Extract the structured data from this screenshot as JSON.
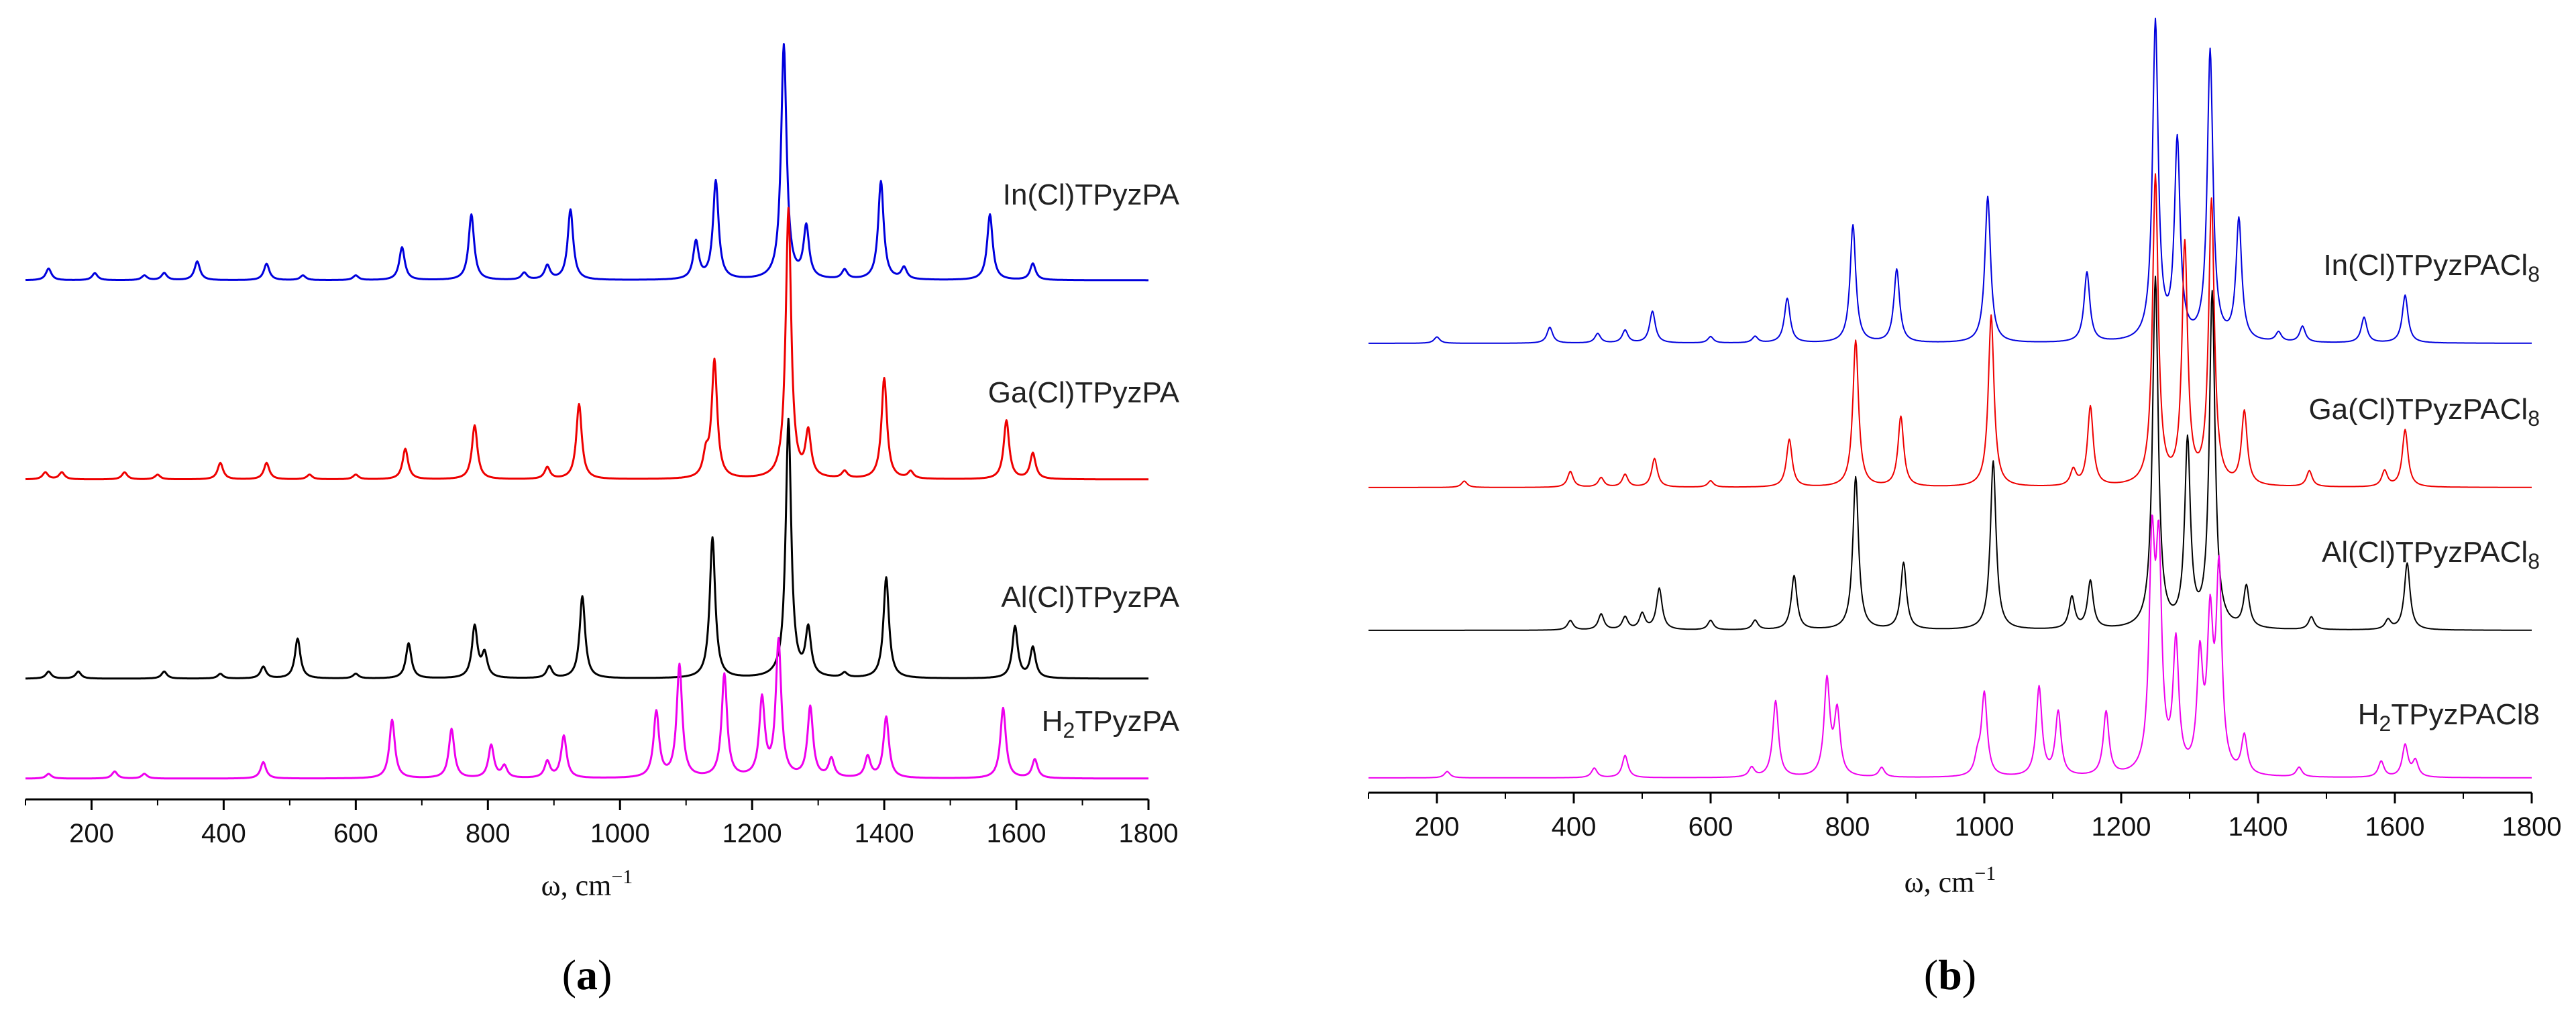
{
  "chart_data": [
    {
      "type": "line",
      "panel_label": "a",
      "xlabel_base": "ω, cm",
      "xlabel_sup": "−1",
      "xlim": [
        100,
        1800
      ],
      "x_ticks": [
        200,
        400,
        600,
        800,
        1000,
        1200,
        1400,
        1600,
        1800
      ],
      "grid": false,
      "series": [
        {
          "name": "In(Cl)TPyzPA",
          "name_main": "In(Cl)TPyzPA",
          "name_sub": "",
          "name_tail": "",
          "color": "#0000dd",
          "peaks": [
            [
              135,
              0.05
            ],
            [
              205,
              0.03
            ],
            [
              280,
              0.02
            ],
            [
              310,
              0.03
            ],
            [
              360,
              0.08
            ],
            [
              465,
              0.07
            ],
            [
              520,
              0.02
            ],
            [
              600,
              0.02
            ],
            [
              670,
              0.14
            ],
            [
              775,
              0.28
            ],
            [
              855,
              0.03
            ],
            [
              890,
              0.06
            ],
            [
              925,
              0.3
            ],
            [
              1115,
              0.16
            ],
            [
              1145,
              0.42
            ],
            [
              1248,
              1.0
            ],
            [
              1282,
              0.22
            ],
            [
              1340,
              0.04
            ],
            [
              1395,
              0.42
            ],
            [
              1430,
              0.05
            ],
            [
              1560,
              0.28
            ],
            [
              1625,
              0.07
            ]
          ]
        },
        {
          "name": "Ga(Cl)TPyzPA",
          "name_main": "Ga(Cl)TPyzPA",
          "name_sub": "",
          "name_tail": "",
          "color": "#ee0000",
          "peaks": [
            [
              130,
              0.03
            ],
            [
              155,
              0.03
            ],
            [
              250,
              0.03
            ],
            [
              300,
              0.02
            ],
            [
              395,
              0.07
            ],
            [
              465,
              0.07
            ],
            [
              530,
              0.02
            ],
            [
              600,
              0.02
            ],
            [
              675,
              0.13
            ],
            [
              780,
              0.23
            ],
            [
              890,
              0.05
            ],
            [
              938,
              0.32
            ],
            [
              1130,
              0.09
            ],
            [
              1143,
              0.5
            ],
            [
              1255,
              1.15
            ],
            [
              1285,
              0.19
            ],
            [
              1340,
              0.03
            ],
            [
              1400,
              0.43
            ],
            [
              1440,
              0.03
            ],
            [
              1585,
              0.25
            ],
            [
              1625,
              0.11
            ]
          ]
        },
        {
          "name": "Al(Cl)TPyzPA",
          "name_main": "Al(Cl)TPyzPA",
          "name_sub": "",
          "name_tail": "",
          "color": "#000000",
          "peaks": [
            [
              135,
              0.03
            ],
            [
              180,
              0.03
            ],
            [
              310,
              0.03
            ],
            [
              395,
              0.02
            ],
            [
              460,
              0.05
            ],
            [
              512,
              0.17
            ],
            [
              600,
              0.02
            ],
            [
              680,
              0.15
            ],
            [
              780,
              0.22
            ],
            [
              795,
              0.1
            ],
            [
              893,
              0.05
            ],
            [
              943,
              0.35
            ],
            [
              1140,
              0.6
            ],
            [
              1255,
              1.1
            ],
            [
              1285,
              0.2
            ],
            [
              1340,
              0.02
            ],
            [
              1403,
              0.43
            ],
            [
              1598,
              0.22
            ],
            [
              1625,
              0.13
            ]
          ]
        },
        {
          "name": "H2TPyzPA",
          "name_main": "H",
          "name_sub": "2",
          "name_tail": "TPyzPA",
          "color": "#ee00ee",
          "peaks": [
            [
              135,
              0.02
            ],
            [
              235,
              0.03
            ],
            [
              280,
              0.02
            ],
            [
              460,
              0.07
            ],
            [
              655,
              0.25
            ],
            [
              745,
              0.21
            ],
            [
              805,
              0.14
            ],
            [
              825,
              0.05
            ],
            [
              890,
              0.07
            ],
            [
              915,
              0.18
            ],
            [
              1055,
              0.28
            ],
            [
              1090,
              0.48
            ],
            [
              1158,
              0.44
            ],
            [
              1215,
              0.33
            ],
            [
              1240,
              0.58
            ],
            [
              1288,
              0.3
            ],
            [
              1320,
              0.08
            ],
            [
              1375,
              0.09
            ],
            [
              1403,
              0.26
            ],
            [
              1580,
              0.3
            ],
            [
              1628,
              0.08
            ]
          ]
        }
      ]
    },
    {
      "type": "line",
      "panel_label": "b",
      "xlabel_base": "ω, cm",
      "xlabel_sup": "−1",
      "xlim": [
        100,
        1800
      ],
      "x_ticks": [
        200,
        400,
        600,
        800,
        1000,
        1200,
        1400,
        1600,
        1800
      ],
      "grid": false,
      "series": [
        {
          "name": "In(Cl)TPyzPACl8",
          "name_main": "In(Cl)TPyzPACl",
          "name_sub": "8",
          "name_tail": "",
          "color": "#0000dd",
          "peaks": [
            [
              200,
              0.02
            ],
            [
              365,
              0.05
            ],
            [
              435,
              0.03
            ],
            [
              475,
              0.04
            ],
            [
              515,
              0.1
            ],
            [
              600,
              0.02
            ],
            [
              665,
              0.02
            ],
            [
              712,
              0.14
            ],
            [
              808,
              0.37
            ],
            [
              872,
              0.23
            ],
            [
              1005,
              0.46
            ],
            [
              1150,
              0.22
            ],
            [
              1250,
              1.0
            ],
            [
              1282,
              0.62
            ],
            [
              1330,
              0.91
            ],
            [
              1372,
              0.38
            ],
            [
              1430,
              0.03
            ],
            [
              1465,
              0.05
            ],
            [
              1555,
              0.08
            ],
            [
              1615,
              0.15
            ]
          ]
        },
        {
          "name": "Ga(Cl)TPyzPACl8",
          "name_main": "Ga(Cl)TPyzPACl",
          "name_sub": "8",
          "name_tail": "",
          "color": "#ee0000",
          "peaks": [
            [
              240,
              0.02
            ],
            [
              395,
              0.05
            ],
            [
              440,
              0.03
            ],
            [
              475,
              0.04
            ],
            [
              518,
              0.09
            ],
            [
              600,
              0.02
            ],
            [
              715,
              0.15
            ],
            [
              812,
              0.46
            ],
            [
              878,
              0.22
            ],
            [
              1010,
              0.54
            ],
            [
              1130,
              0.05
            ],
            [
              1155,
              0.25
            ],
            [
              1250,
              0.97
            ],
            [
              1293,
              0.75
            ],
            [
              1332,
              0.89
            ],
            [
              1380,
              0.23
            ],
            [
              1475,
              0.05
            ],
            [
              1585,
              0.05
            ],
            [
              1615,
              0.18
            ]
          ]
        },
        {
          "name": "Al(Cl)TPyzPACl8",
          "name_main": "Al(Cl)TPyzPACl",
          "name_sub": "8",
          "name_tail": "",
          "color": "#000000",
          "peaks": [
            [
              395,
              0.03
            ],
            [
              440,
              0.05
            ],
            [
              475,
              0.04
            ],
            [
              500,
              0.05
            ],
            [
              525,
              0.13
            ],
            [
              600,
              0.03
            ],
            [
              665,
              0.03
            ],
            [
              722,
              0.17
            ],
            [
              812,
              0.48
            ],
            [
              882,
              0.21
            ],
            [
              1013,
              0.53
            ],
            [
              1128,
              0.1
            ],
            [
              1155,
              0.15
            ],
            [
              1250,
              1.1
            ],
            [
              1297,
              0.58
            ],
            [
              1333,
              1.05
            ],
            [
              1383,
              0.13
            ],
            [
              1478,
              0.04
            ],
            [
              1590,
              0.03
            ],
            [
              1618,
              0.21
            ]
          ]
        },
        {
          "name": "H2TPyzPACl8",
          "name_main": "H",
          "name_sub": "2",
          "name_tail": "TPyzPACl8",
          "color": "#ee00ee",
          "peaks": [
            [
              215,
              0.02
            ],
            [
              430,
              0.03
            ],
            [
              475,
              0.07
            ],
            [
              660,
              0.03
            ],
            [
              695,
              0.24
            ],
            [
              770,
              0.3
            ],
            [
              785,
              0.2
            ],
            [
              850,
              0.03
            ],
            [
              990,
              0.05
            ],
            [
              1000,
              0.26
            ],
            [
              1080,
              0.28
            ],
            [
              1108,
              0.2
            ],
            [
              1178,
              0.2
            ],
            [
              1245,
              0.68
            ],
            [
              1255,
              0.65
            ],
            [
              1280,
              0.4
            ],
            [
              1315,
              0.35
            ],
            [
              1330,
              0.45
            ],
            [
              1343,
              0.62
            ],
            [
              1380,
              0.12
            ],
            [
              1460,
              0.03
            ],
            [
              1580,
              0.05
            ],
            [
              1615,
              0.1
            ],
            [
              1630,
              0.05
            ]
          ]
        }
      ]
    }
  ]
}
